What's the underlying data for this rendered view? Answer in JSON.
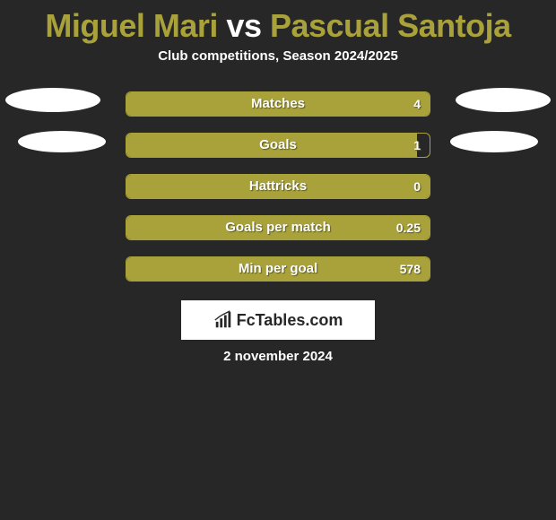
{
  "title": {
    "player1": "Miguel Mari",
    "vs": "vs",
    "player2": "Pascual Santoja",
    "color_player": "#a9a13a",
    "color_vs": "#ffffff"
  },
  "subtitle": "Club competitions, Season 2024/2025",
  "bars": {
    "outer_width": 340,
    "border_color": "#a9a13a",
    "fill_color": "#a9a13a",
    "text_color": "#ffffff",
    "shadow_color": "#5a5a22"
  },
  "stats": [
    {
      "label": "Matches",
      "value": "4",
      "fill_pct": 100,
      "left_ellipse": "large",
      "right_ellipse": "large"
    },
    {
      "label": "Goals",
      "value": "1",
      "fill_pct": 96,
      "left_ellipse": "small",
      "right_ellipse": "small"
    },
    {
      "label": "Hattricks",
      "value": "0",
      "fill_pct": 100,
      "left_ellipse": null,
      "right_ellipse": null
    },
    {
      "label": "Goals per match",
      "value": "0.25",
      "fill_pct": 100,
      "left_ellipse": null,
      "right_ellipse": null
    },
    {
      "label": "Min per goal",
      "value": "578",
      "fill_pct": 100,
      "left_ellipse": null,
      "right_ellipse": null
    }
  ],
  "brand": {
    "text": "FcTables.com",
    "icon_name": "bar-chart-icon"
  },
  "date": "2 november 2024",
  "colors": {
    "background": "#272727",
    "white": "#ffffff"
  }
}
